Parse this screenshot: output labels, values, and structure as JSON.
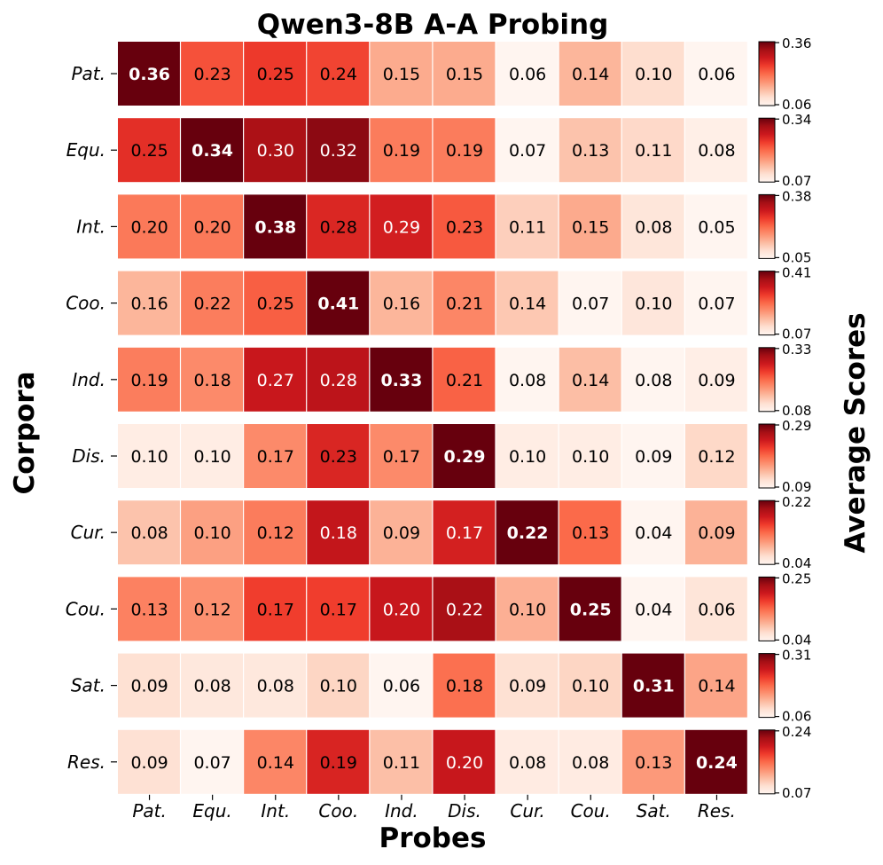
{
  "chart_data": {
    "type": "heatmap",
    "title": "Qwen3-8B A-A Probing",
    "xlabel": "Probes",
    "ylabel": "Corpora",
    "colorbar_label": "Average Scores",
    "colormap": "Reds",
    "normalization": "per-row",
    "probes": [
      "Pat.",
      "Equ.",
      "Int.",
      "Coo.",
      "Ind.",
      "Dis.",
      "Cur.",
      "Cou.",
      "Sat.",
      "Res."
    ],
    "corpora": [
      "Pat.",
      "Equ.",
      "Int.",
      "Coo.",
      "Ind.",
      "Dis.",
      "Cur.",
      "Cou.",
      "Sat.",
      "Res."
    ],
    "values": [
      [
        0.36,
        0.23,
        0.25,
        0.24,
        0.15,
        0.15,
        0.06,
        0.14,
        0.1,
        0.06
      ],
      [
        0.25,
        0.34,
        0.3,
        0.32,
        0.19,
        0.19,
        0.07,
        0.13,
        0.11,
        0.08
      ],
      [
        0.2,
        0.2,
        0.38,
        0.28,
        0.29,
        0.23,
        0.11,
        0.15,
        0.08,
        0.05
      ],
      [
        0.16,
        0.22,
        0.25,
        0.41,
        0.16,
        0.21,
        0.14,
        0.07,
        0.1,
        0.07
      ],
      [
        0.19,
        0.18,
        0.27,
        0.28,
        0.33,
        0.21,
        0.08,
        0.14,
        0.08,
        0.09
      ],
      [
        0.1,
        0.1,
        0.17,
        0.23,
        0.17,
        0.29,
        0.1,
        0.1,
        0.09,
        0.12
      ],
      [
        0.08,
        0.1,
        0.12,
        0.18,
        0.09,
        0.17,
        0.22,
        0.13,
        0.04,
        0.09
      ],
      [
        0.13,
        0.12,
        0.17,
        0.17,
        0.2,
        0.22,
        0.1,
        0.25,
        0.04,
        0.06
      ],
      [
        0.09,
        0.08,
        0.08,
        0.1,
        0.06,
        0.18,
        0.09,
        0.1,
        0.31,
        0.14
      ],
      [
        0.09,
        0.07,
        0.14,
        0.19,
        0.11,
        0.2,
        0.08,
        0.08,
        0.13,
        0.24
      ]
    ],
    "colorbar_ranges": [
      [
        "0.06",
        "0.36"
      ],
      [
        "0.07",
        "0.34"
      ],
      [
        "0.05",
        "0.38"
      ],
      [
        "0.07",
        "0.41"
      ],
      [
        "0.08",
        "0.33"
      ],
      [
        "0.09",
        "0.29"
      ],
      [
        "0.04",
        "0.22"
      ],
      [
        "0.04",
        "0.25"
      ],
      [
        "0.06",
        "0.31"
      ],
      [
        "0.07",
        "0.24"
      ]
    ]
  }
}
